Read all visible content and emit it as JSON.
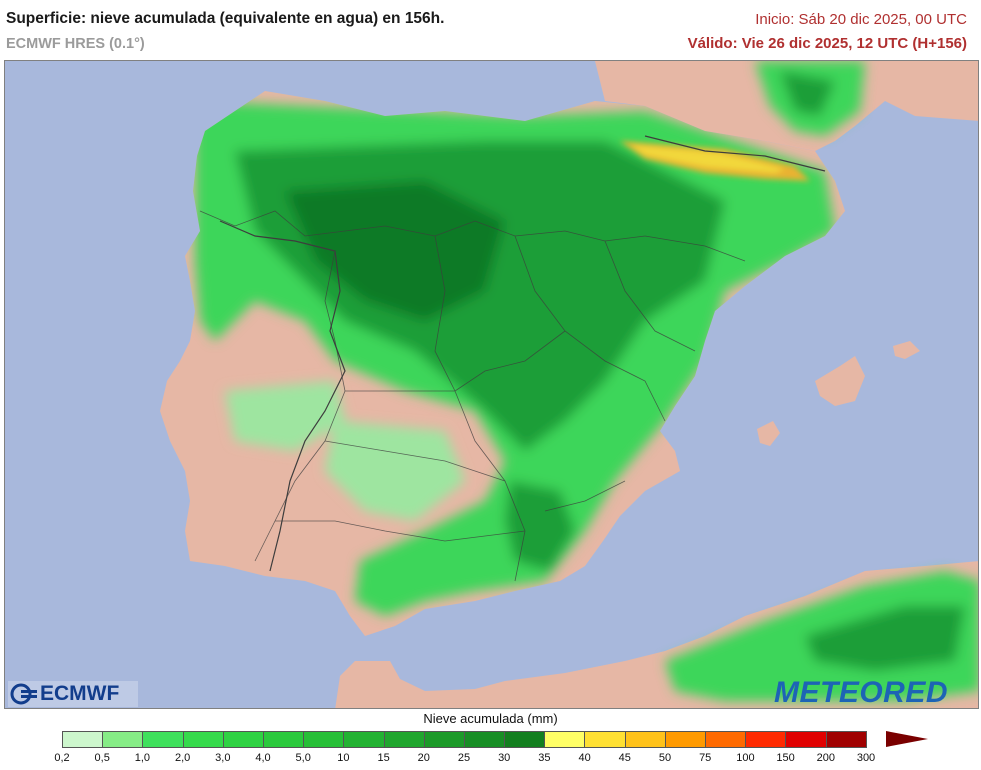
{
  "header": {
    "title": "Superficie: nieve acumulada (equivalente en agua) en 156h.",
    "model": "ECMWF HRES (0.1°)",
    "init": "Inicio: Sáb 20 dic 2025, 00 UTC",
    "valid": "Válido: Vie 26 dic 2025, 12 UTC (H+156)"
  },
  "map": {
    "colors": {
      "sea": "#a8b8dc",
      "land": "#e6b7a5",
      "border": "#3d3d3d",
      "snow_light": "#9ee5a0",
      "snow_mid": "#3cd65a",
      "snow_dark": "#1a9e38",
      "snow_deep": "#0f7a28",
      "snow_yellow": "#f2d83a",
      "snow_orange": "#e9b230"
    }
  },
  "logos": {
    "left": "ECMWF",
    "right": "METEORED"
  },
  "legend": {
    "title": "Nieve acumulada (mm)",
    "ticks": [
      "0,2",
      "0,5",
      "1,0",
      "2,0",
      "3,0",
      "4,0",
      "5,0",
      "10",
      "15",
      "20",
      "25",
      "30",
      "35",
      "40",
      "45",
      "50",
      "75",
      "100",
      "150",
      "200",
      "300"
    ],
    "colors": [
      "#cdf7cd",
      "#86ec86",
      "#3fe05c",
      "#36da4c",
      "#2fd243",
      "#2bc93d",
      "#27bf37",
      "#23b232",
      "#20a62e",
      "#1c9a29",
      "#188e25",
      "#137f1f",
      "#ffff66",
      "#ffe033",
      "#ffc21a",
      "#ff9a00",
      "#ff6a00",
      "#ff2a00",
      "#e00000",
      "#a00000"
    ]
  }
}
